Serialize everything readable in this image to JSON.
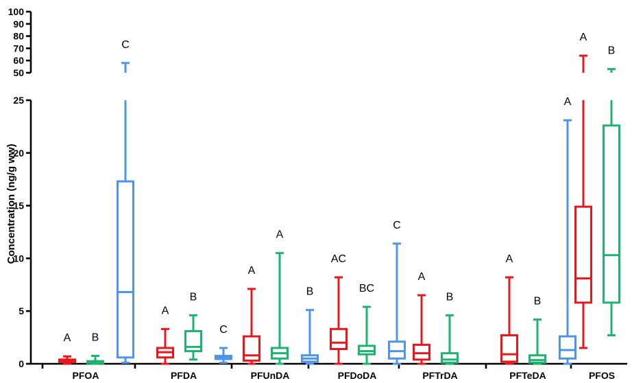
{
  "chart_data": {
    "type": "box",
    "title": "",
    "ylabel": "Concentration  (ng/g ww)",
    "xlabel": "",
    "y_scale": "broken",
    "y_segments": [
      {
        "range": [
          0,
          25
        ],
        "ticks": [
          0,
          5,
          10,
          15,
          20,
          25
        ],
        "tick_labels": [
          "0",
          "5",
          "10",
          "15",
          "20",
          "25"
        ]
      },
      {
        "range": [
          50,
          100
        ],
        "ticks": [
          50,
          60,
          70,
          80,
          90,
          100
        ],
        "tick_labels": [
          "50",
          "60",
          "70",
          "80",
          "90",
          "100"
        ]
      }
    ],
    "grid": false,
    "legend": "none",
    "colors": {
      "red": "#e8171c",
      "green": "#1cb46e",
      "blue": "#4e94e8"
    },
    "categories": [
      "PFOA",
      "PFDA",
      "PFUnDA",
      "PFDoDA",
      "PFTrDA",
      "PFTeDA",
      "PFOS"
    ],
    "boxes": [
      {
        "category": "PFOA",
        "color": "red",
        "min": 0.0,
        "q1": 0.15,
        "median": 0.3,
        "q3": 0.4,
        "max": 0.7,
        "letter": "A"
      },
      {
        "category": "PFOA",
        "color": "green",
        "min": 0.0,
        "q1": 0.05,
        "median": 0.15,
        "q3": 0.25,
        "max": 0.75,
        "letter": "B"
      },
      {
        "category": "PFOA",
        "color": "blue",
        "min": 0.1,
        "q1": 0.6,
        "median": 6.8,
        "q3": 17.3,
        "max": 58,
        "letter": "C"
      },
      {
        "category": "PFDA",
        "color": "red",
        "min": 0.0,
        "q1": 0.6,
        "median": 1.1,
        "q3": 1.5,
        "max": 3.3,
        "letter": "A"
      },
      {
        "category": "PFDA",
        "color": "green",
        "min": 0.4,
        "q1": 1.2,
        "median": 1.6,
        "q3": 3.1,
        "max": 4.6,
        "letter": "B"
      },
      {
        "category": "PFDA",
        "color": "blue",
        "min": 0.1,
        "q1": 0.45,
        "median": 0.6,
        "q3": 0.75,
        "max": 1.5,
        "letter": "C"
      },
      {
        "category": "PFUnDA",
        "color": "red",
        "min": 0.0,
        "q1": 0.3,
        "median": 0.8,
        "q3": 2.6,
        "max": 7.1,
        "letter": "A"
      },
      {
        "category": "PFUnDA",
        "color": "green",
        "min": 0.0,
        "q1": 0.5,
        "median": 1.0,
        "q3": 1.5,
        "max": 10.5,
        "letter": "A"
      },
      {
        "category": "PFUnDA",
        "color": "blue",
        "min": 0.0,
        "q1": 0.2,
        "median": 0.5,
        "q3": 0.8,
        "max": 5.1,
        "letter": "B"
      },
      {
        "category": "PFDoDA",
        "color": "red",
        "min": 0.0,
        "q1": 1.4,
        "median": 2.0,
        "q3": 3.3,
        "max": 8.2,
        "letter": "AC"
      },
      {
        "category": "PFDoDA",
        "color": "green",
        "min": 0.0,
        "q1": 0.9,
        "median": 1.2,
        "q3": 1.7,
        "max": 5.4,
        "letter": "BC"
      },
      {
        "category": "PFDoDA",
        "color": "blue",
        "min": 0.0,
        "q1": 0.5,
        "median": 1.2,
        "q3": 2.1,
        "max": 11.4,
        "letter": "C"
      },
      {
        "category": "PFTrDA",
        "color": "red",
        "min": 0.0,
        "q1": 0.4,
        "median": 1.0,
        "q3": 1.8,
        "max": 6.5,
        "letter": "A"
      },
      {
        "category": "PFTrDA",
        "color": "green",
        "min": 0.0,
        "q1": 0.1,
        "median": 0.4,
        "q3": 1.0,
        "max": 4.6,
        "letter": "B"
      },
      {
        "category": "PFTeDA",
        "color": "red",
        "min": 0.0,
        "q1": 0.2,
        "median": 0.9,
        "q3": 2.7,
        "max": 8.2,
        "letter": "A"
      },
      {
        "category": "PFTeDA",
        "color": "green",
        "min": 0.0,
        "q1": 0.1,
        "median": 0.35,
        "q3": 0.8,
        "max": 4.2,
        "letter": "B"
      },
      {
        "category": "PFTeDA",
        "color": "blue",
        "min": 0.0,
        "q1": 0.5,
        "median": 1.3,
        "q3": 2.6,
        "max": 23.1,
        "letter": "A"
      },
      {
        "category": "PFOS",
        "color": "red",
        "min": 1.5,
        "q1": 5.8,
        "median": 8.1,
        "q3": 14.9,
        "max": 64,
        "letter": "A"
      },
      {
        "category": "PFOS",
        "color": "green",
        "min": 2.7,
        "q1": 5.8,
        "median": 10.3,
        "q3": 22.6,
        "max": 53,
        "letter": "B"
      }
    ]
  }
}
